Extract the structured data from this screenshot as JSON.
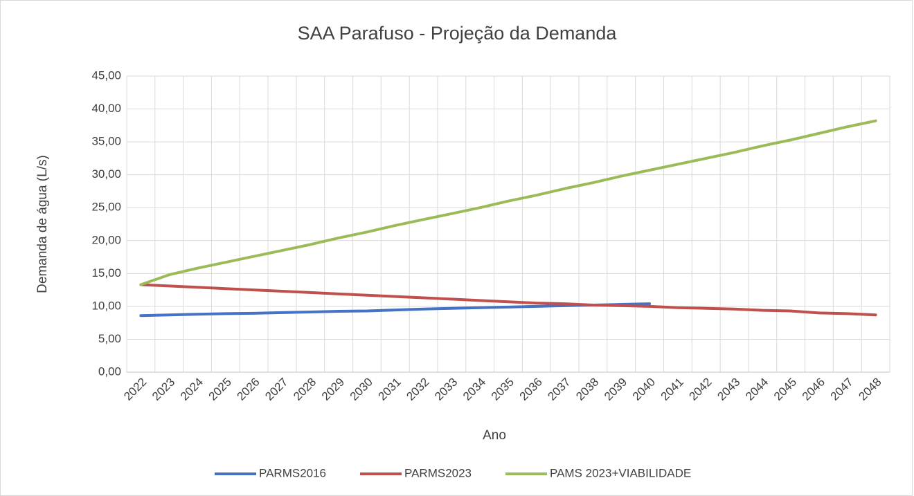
{
  "chart_data": {
    "type": "line",
    "title": "SAA Parafuso - Projeção da Demanda",
    "x_label": "Ano",
    "y_label": "Demanda de água (L/s)",
    "categories": [
      "2022",
      "2023",
      "2024",
      "2025",
      "2026",
      "2027",
      "2028",
      "2029",
      "2030",
      "2031",
      "2032",
      "2033",
      "2034",
      "2035",
      "2036",
      "2037",
      "2038",
      "2039",
      "2040",
      "2041",
      "2042",
      "2043",
      "2044",
      "2045",
      "2046",
      "2047",
      "2048"
    ],
    "series": [
      {
        "name": "PARMS2016",
        "color": "#4472c4",
        "values": [
          8.6,
          8.7,
          8.8,
          8.9,
          8.95,
          9.05,
          9.15,
          9.25,
          9.3,
          9.45,
          9.6,
          9.7,
          9.8,
          9.9,
          10.0,
          10.1,
          10.2,
          10.3,
          10.4,
          null,
          null,
          null,
          null,
          null,
          null,
          null,
          null
        ]
      },
      {
        "name": "PARMS2023",
        "color": "#c0504d",
        "values": [
          13.3,
          13.1,
          12.9,
          12.7,
          12.5,
          12.3,
          12.1,
          11.9,
          11.7,
          11.5,
          11.3,
          11.1,
          10.9,
          10.7,
          10.5,
          10.4,
          10.2,
          10.1,
          10.0,
          9.8,
          9.7,
          9.6,
          9.4,
          9.3,
          9.0,
          8.9,
          8.7
        ]
      },
      {
        "name": "PAMS 2023+VIABILIDADE",
        "color": "#9bbb59",
        "values": [
          13.3,
          14.8,
          15.8,
          16.7,
          17.6,
          18.5,
          19.4,
          20.4,
          21.3,
          22.3,
          23.2,
          24.1,
          25.0,
          26.0,
          26.9,
          27.9,
          28.8,
          29.8,
          30.7,
          31.6,
          32.5,
          33.4,
          34.4,
          35.3,
          36.3,
          37.3,
          38.2
        ]
      }
    ],
    "ylim": [
      0,
      45
    ],
    "yticks": [
      {
        "value": 0,
        "label": "0,00"
      },
      {
        "value": 5,
        "label": "5,00"
      },
      {
        "value": 10,
        "label": "10,00"
      },
      {
        "value": 15,
        "label": "15,00"
      },
      {
        "value": 20,
        "label": "20,00"
      },
      {
        "value": 25,
        "label": "25,00"
      },
      {
        "value": 30,
        "label": "30,00"
      },
      {
        "value": 35,
        "label": "35,00"
      },
      {
        "value": 40,
        "label": "40,00"
      },
      {
        "value": 45,
        "label": "45,00"
      }
    ],
    "grid": true,
    "legend": "bottom"
  }
}
